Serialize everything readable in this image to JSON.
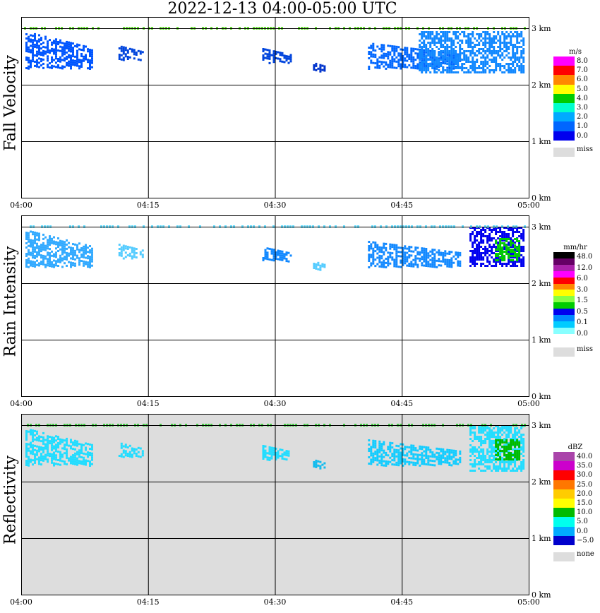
{
  "title": "2022-12-13   04:00-05:00 UTC",
  "chart_data": [
    {
      "type": "heatmap",
      "ylabel": "Fall Velocity",
      "x_ticks": [
        "04:00",
        "04:15",
        "04:30",
        "04:45",
        "05:00"
      ],
      "y_ticks": [
        "0 km",
        "1 km",
        "2 km",
        "3 km"
      ],
      "ylim_km": [
        0,
        3.2
      ],
      "grid": true,
      "background": "#ffffff",
      "legend": {
        "unit": "m/s",
        "levels": [
          "8.0",
          "7.0",
          "6.0",
          "5.0",
          "4.0",
          "3.0",
          "2.0",
          "1.0",
          "0.0"
        ],
        "colors": [
          "#ff00ff",
          "#ff0000",
          "#ff8800",
          "#ffff00",
          "#00cc00",
          "#00ffcc",
          "#00aaff",
          "#0066ff",
          "#0000ee"
        ],
        "missing_label": "miss",
        "missing_color": "#dddddd"
      },
      "echo_blobs": [
        {
          "t0": 0.5,
          "t1": 8.5,
          "h0": 2.3,
          "h1": 2.95,
          "color": "#0055ff"
        },
        {
          "t0": 11.5,
          "t1": 14.5,
          "h0": 2.45,
          "h1": 2.7,
          "color": "#0044dd"
        },
        {
          "t0": 28.5,
          "t1": 32.0,
          "h0": 2.4,
          "h1": 2.65,
          "color": "#0044dd"
        },
        {
          "t0": 34.5,
          "t1": 36.0,
          "h0": 2.25,
          "h1": 2.4,
          "color": "#0033cc"
        },
        {
          "t0": 41.0,
          "t1": 52.0,
          "h0": 2.3,
          "h1": 2.75,
          "color": "#0066ff"
        },
        {
          "t0": 47.0,
          "t1": 59.5,
          "h0": 2.2,
          "h1": 2.95,
          "color": "#1188ff"
        }
      ],
      "top_band": {
        "height_km": 3.0,
        "color": "#66dd33"
      }
    },
    {
      "type": "heatmap",
      "ylabel": "Rain Intensity",
      "x_ticks": [
        "04:00",
        "04:15",
        "04:30",
        "04:45",
        "05:00"
      ],
      "y_ticks": [
        "0 km",
        "1 km",
        "2 km",
        "3 km"
      ],
      "ylim_km": [
        0,
        3.2
      ],
      "grid": true,
      "background": "#ffffff",
      "legend": {
        "unit": "mm/hr",
        "levels": [
          "48.0",
          "12.0",
          "6.0",
          "3.0",
          "1.5",
          "0.5",
          "0.1",
          "0.0"
        ],
        "colors": [
          "#000000",
          "#660066",
          "#aa22aa",
          "#ff00ff",
          "#ff0000",
          "#ff8800",
          "#ffff00",
          "#88ff44",
          "#00cc00",
          "#0000ee",
          "#0088ff",
          "#00ccff",
          "#88ffff",
          "#ffffff"
        ],
        "missing_label": "miss",
        "missing_color": "#dddddd"
      },
      "echo_blobs": [
        {
          "t0": 0.5,
          "t1": 8.5,
          "h0": 2.3,
          "h1": 2.95,
          "color": "#33aaff"
        },
        {
          "t0": 11.5,
          "t1": 14.5,
          "h0": 2.45,
          "h1": 2.7,
          "color": "#55ccff"
        },
        {
          "t0": 28.5,
          "t1": 32.0,
          "h0": 2.4,
          "h1": 2.65,
          "color": "#1188ff"
        },
        {
          "t0": 34.5,
          "t1": 36.0,
          "h0": 2.25,
          "h1": 2.4,
          "color": "#55ccff"
        },
        {
          "t0": 41.0,
          "t1": 52.0,
          "h0": 2.3,
          "h1": 2.75,
          "color": "#1188ff"
        },
        {
          "t0": 53.0,
          "t1": 59.5,
          "h0": 2.3,
          "h1": 3.0,
          "color": "#0000ee"
        },
        {
          "t0": 56.0,
          "t1": 59.0,
          "h0": 2.4,
          "h1": 2.8,
          "color": "#00cc00"
        }
      ],
      "top_band": {
        "height_km": 3.0,
        "color": "#66ddff"
      }
    },
    {
      "type": "heatmap",
      "ylabel": "Reflectivity",
      "x_ticks": [
        "04:00",
        "04:15",
        "04:30",
        "04:45",
        "05:00"
      ],
      "y_ticks": [
        "0 km",
        "1 km",
        "2 km",
        "3 km"
      ],
      "ylim_km": [
        0,
        3.2
      ],
      "grid": true,
      "background": "#dddddd",
      "legend": {
        "unit": "dBZ",
        "levels": [
          "40.0",
          "35.0",
          "30.0",
          "25.0",
          "20.0",
          "15.0",
          "10.0",
          "5.0",
          "0.0",
          "−5.0"
        ],
        "colors": [
          "#aa44aa",
          "#cc00cc",
          "#ff0000",
          "#ff7700",
          "#ffcc00",
          "#ffff00",
          "#00bb00",
          "#00ffee",
          "#00aaff",
          "#0000cc"
        ],
        "missing_label": "none",
        "missing_color": "#dddddd"
      },
      "echo_blobs": [
        {
          "t0": 0.5,
          "t1": 8.5,
          "h0": 2.3,
          "h1": 2.95,
          "color": "#22ddff"
        },
        {
          "t0": 11.5,
          "t1": 14.5,
          "h0": 2.45,
          "h1": 2.7,
          "color": "#22ddff"
        },
        {
          "t0": 28.5,
          "t1": 32.0,
          "h0": 2.4,
          "h1": 2.65,
          "color": "#22ddff"
        },
        {
          "t0": 34.5,
          "t1": 36.0,
          "h0": 2.25,
          "h1": 2.4,
          "color": "#11bbee"
        },
        {
          "t0": 41.0,
          "t1": 52.0,
          "h0": 2.3,
          "h1": 2.75,
          "color": "#11ccff"
        },
        {
          "t0": 53.0,
          "t1": 59.5,
          "h0": 2.2,
          "h1": 3.0,
          "color": "#22ddff"
        },
        {
          "t0": 56.0,
          "t1": 59.0,
          "h0": 2.4,
          "h1": 2.75,
          "color": "#00bb00"
        }
      ],
      "top_band": {
        "height_km": 3.0,
        "color": "#44cc44"
      }
    }
  ]
}
